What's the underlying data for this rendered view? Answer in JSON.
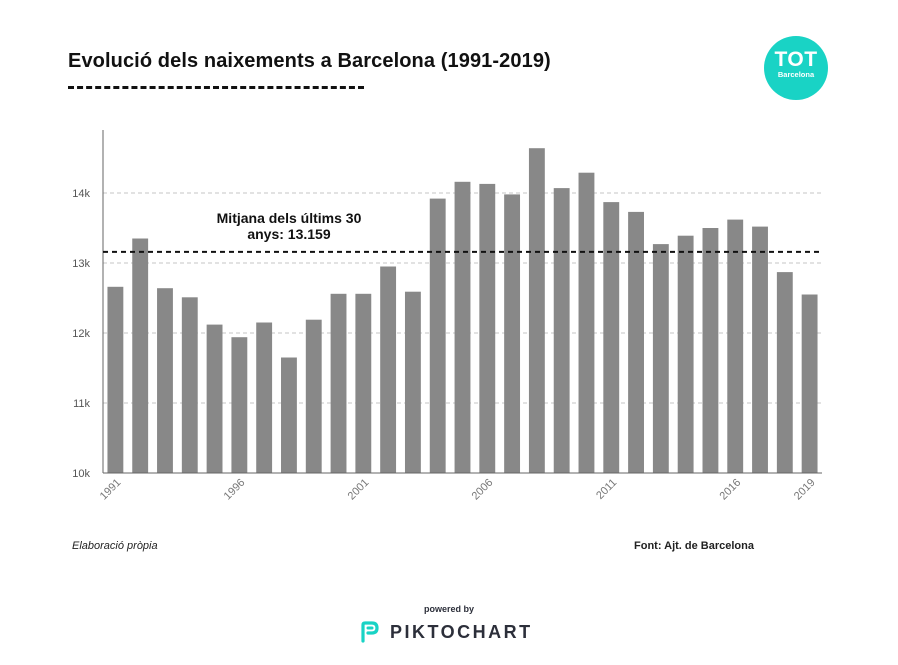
{
  "header": {
    "title": "Evolució dels naixements a Barcelona (1991-2019)"
  },
  "logo": {
    "line1": "TOT",
    "line2": "Barcelona",
    "color": "#19d3c5"
  },
  "chart_data": {
    "type": "bar",
    "title": "Evolució dels naixements a Barcelona (1991-2019)",
    "categories": [
      "1991",
      "1992",
      "1993",
      "1994",
      "1995",
      "1996",
      "1997",
      "1998",
      "1999",
      "2000",
      "2001",
      "2002",
      "2003",
      "2004",
      "2005",
      "2006",
      "2007",
      "2008",
      "2009",
      "2010",
      "2011",
      "2012",
      "2013",
      "2014",
      "2015",
      "2016",
      "2017",
      "2018",
      "2019"
    ],
    "values": [
      12660,
      13350,
      12640,
      12510,
      12120,
      11940,
      12150,
      11650,
      12190,
      12560,
      12560,
      12950,
      12590,
      13920,
      14160,
      14130,
      13980,
      14640,
      14070,
      14290,
      13870,
      13730,
      13270,
      13390,
      13500,
      13620,
      13520,
      12870,
      12550
    ],
    "xtick_labels": [
      "1991",
      "1996",
      "2001",
      "2006",
      "2011",
      "2016",
      "2019"
    ],
    "ytick_labels": [
      "10k",
      "11k",
      "12k",
      "13k",
      "14k"
    ],
    "yticks": [
      10000,
      11000,
      12000,
      13000,
      14000
    ],
    "ylim": [
      10000,
      14900
    ],
    "xlabel": "",
    "ylabel": "",
    "reference_line": {
      "value": 13159,
      "label_line1": "Mitjana dels últims 30",
      "label_line2": "anys: 13.159"
    },
    "grid": true,
    "bar_color": "#888888"
  },
  "footer": {
    "left": "Elaboració pròpia",
    "right": "Font: Ajt. de Barcelona",
    "powered_by": "powered by",
    "brand": "PIKTOCHART"
  }
}
